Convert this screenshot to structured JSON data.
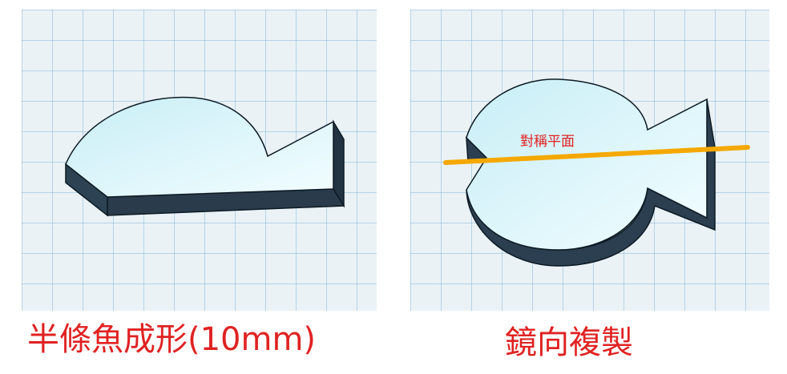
{
  "left_panel": {
    "caption": "半條魚成形(10mm)"
  },
  "right_panel": {
    "caption": "鏡向複製",
    "plane_label": "對稱平面"
  },
  "colors": {
    "grid_background": "#eaf2f6",
    "grid_line": "#78aad2",
    "shape_top": "#def7fc",
    "shape_side": "#2c3f4f",
    "plane_line": "#f5a800",
    "text_red": "#e02222"
  }
}
